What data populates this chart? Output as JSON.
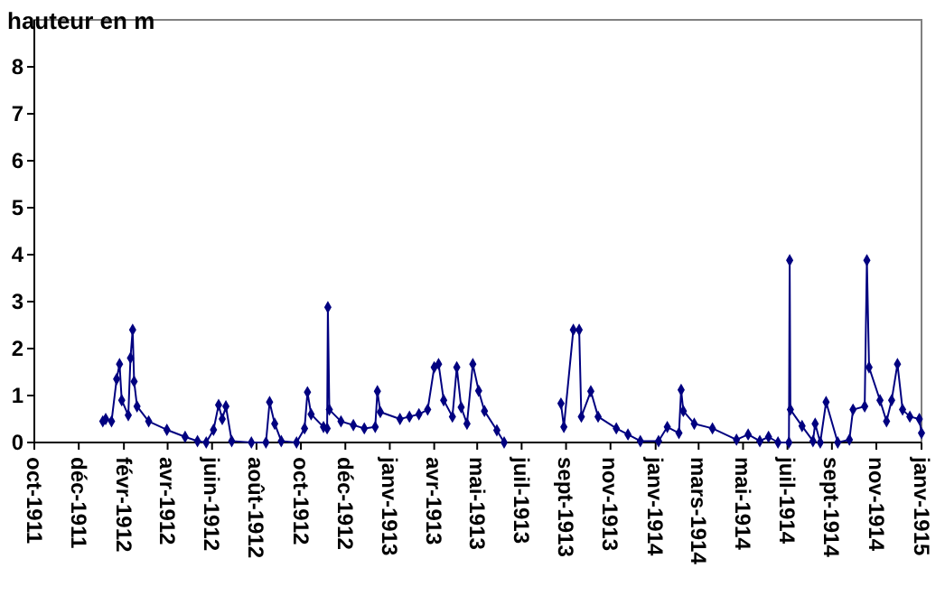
{
  "chart_data": {
    "type": "line",
    "ylabel": "hauteur en m",
    "xlim": [
      "1911-10-01",
      "1915-01-31"
    ],
    "ylim": [
      0,
      9
    ],
    "yticks": [
      0,
      1,
      2,
      3,
      4,
      5,
      6,
      7,
      8
    ],
    "xticks": [
      {
        "value": "1911-10-01",
        "label": "oct-1911"
      },
      {
        "value": "1911-12-01",
        "label": "déc-1911"
      },
      {
        "value": "1912-02-01",
        "label": "févr-1912"
      },
      {
        "value": "1912-04-01",
        "label": "avr-1912"
      },
      {
        "value": "1912-06-01",
        "label": "juin-1912"
      },
      {
        "value": "1912-08-01",
        "label": "août-1912"
      },
      {
        "value": "1912-10-01",
        "label": "oct-1912"
      },
      {
        "value": "1912-12-01",
        "label": "déc-1912"
      },
      {
        "value": "1913-01-31",
        "label": "janv-1913"
      },
      {
        "value": "1913-04-02",
        "label": "avr-1913"
      },
      {
        "value": "1913-05-31",
        "label": "mai-1913"
      },
      {
        "value": "1913-07-31",
        "label": "juil-1913"
      },
      {
        "value": "1913-09-30",
        "label": "sept-1913"
      },
      {
        "value": "1913-11-30",
        "label": "nov-1913"
      },
      {
        "value": "1914-01-31",
        "label": "janv-1914"
      },
      {
        "value": "1914-03-31",
        "label": "mars-1914"
      },
      {
        "value": "1914-05-31",
        "label": "mai-1914"
      },
      {
        "value": "1914-07-31",
        "label": "juil-1914"
      },
      {
        "value": "1914-09-30",
        "label": "sept-1914"
      },
      {
        "value": "1914-11-30",
        "label": "nov-1914"
      },
      {
        "value": "1915-01-31",
        "label": "janv-1915"
      }
    ],
    "x": [
      "1912-01-03",
      "1912-01-07",
      "1912-01-15",
      "1912-01-22",
      "1912-01-26",
      "1912-01-29",
      "1912-02-07",
      "1912-02-10",
      "1912-02-13",
      "1912-02-15",
      "1912-02-19",
      "1912-03-06",
      "1912-03-31",
      "1912-04-25",
      "1912-05-12",
      "1912-05-24",
      "1912-06-03",
      "1912-06-10",
      "1912-06-15",
      "1912-06-20",
      "1912-06-28",
      "1912-07-25",
      "1912-08-14",
      "1912-08-19",
      "1912-08-26",
      "1912-09-04",
      "1912-09-25",
      "1912-10-06",
      "1912-10-10",
      "1912-10-15",
      "1912-11-01",
      "1912-11-06",
      "1912-11-07",
      "1912-11-09",
      "1912-11-25",
      "1912-12-12",
      "1912-12-27",
      "1913-01-11",
      "1913-01-14",
      "1913-01-18",
      "1913-02-14",
      "1913-02-27",
      "1913-03-12",
      "1913-03-24",
      "1913-04-02",
      "1913-04-08",
      "1913-04-15",
      "1913-04-27",
      "1913-05-03",
      "1913-05-09",
      "1913-05-17",
      "1913-05-25",
      "1913-06-02",
      "1913-06-10",
      "1913-06-27",
      "1913-07-07",
      "1913-08-15",
      "1913-09-23",
      "1913-09-27",
      "1913-10-10",
      "1913-10-18",
      "1913-10-21",
      "1913-11-03",
      "1913-11-13",
      "1913-12-08",
      "1913-12-24",
      "1914-01-10",
      "1914-02-04",
      "1914-02-16",
      "1914-03-04",
      "1914-03-07",
      "1914-03-10",
      "1914-03-25",
      "1914-04-19",
      "1914-05-22",
      "1914-06-07",
      "1914-06-23",
      "1914-07-05",
      "1914-07-18",
      "1914-08-02",
      "1914-08-03",
      "1914-08-04",
      "1914-08-20",
      "1914-09-04",
      "1914-09-07",
      "1914-09-14",
      "1914-09-22",
      "1914-10-08",
      "1914-10-24",
      "1914-10-29",
      "1914-11-14",
      "1914-11-17",
      "1914-11-20",
      "1914-12-05",
      "1914-12-14",
      "1914-12-21",
      "1914-12-29",
      "1915-01-05",
      "1915-01-15",
      "1915-01-28",
      "1915-01-31"
    ],
    "series": [
      {
        "color": "#000080",
        "values": [
          0.45,
          0.5,
          0.45,
          1.35,
          1.67,
          0.9,
          0.58,
          1.8,
          2.4,
          1.3,
          0.77,
          0.45,
          0.27,
          0.12,
          0.03,
          0,
          0.27,
          0.8,
          0.5,
          0.77,
          0.03,
          0,
          0,
          0.86,
          0.4,
          0.03,
          0,
          0.3,
          1.07,
          0.6,
          0.33,
          0.3,
          2.88,
          0.7,
          0.45,
          0.37,
          0.3,
          0.33,
          1.09,
          0.65,
          0.5,
          0.55,
          0.6,
          0.7,
          1.6,
          1.67,
          0.9,
          0.55,
          1.6,
          0.75,
          0.4,
          1.67,
          1.1,
          0.67,
          0.26,
          0,
          null,
          0.83,
          0.33,
          2.4,
          2.4,
          0.55,
          1.09,
          0.55,
          0.3,
          0.17,
          0.03,
          0.03,
          0.33,
          0.2,
          1.12,
          0.67,
          0.4,
          0.3,
          0.06,
          0.17,
          0.03,
          0.12,
          0,
          0,
          3.88,
          0.7,
          0.35,
          0.03,
          0.4,
          0,
          0.86,
          0,
          0.06,
          0.7,
          0.77,
          3.88,
          1.6,
          0.9,
          0.45,
          0.9,
          1.67,
          0.7,
          0.55,
          0.5,
          0.2
        ]
      }
    ],
    "marker": "diamond",
    "line_style": "solid"
  }
}
